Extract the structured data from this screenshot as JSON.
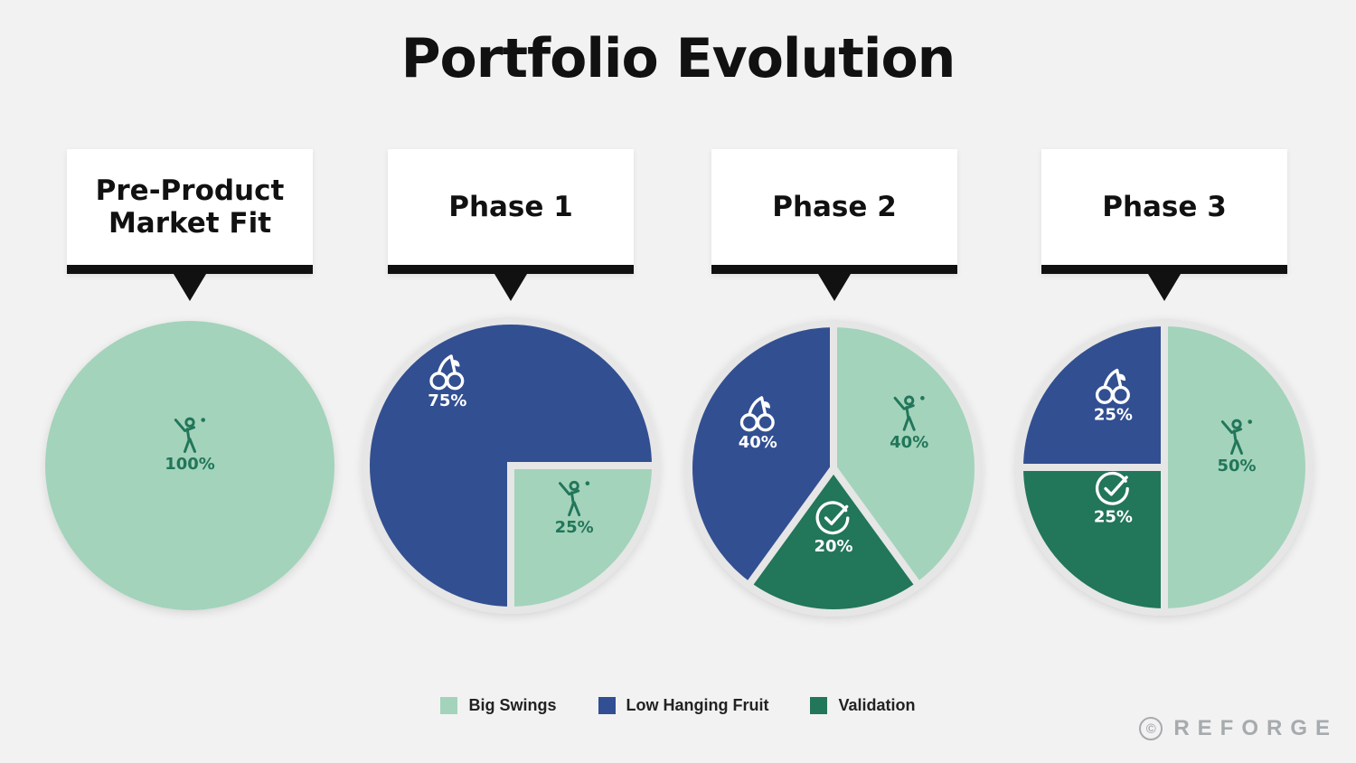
{
  "chart_data": {
    "type": "pie",
    "title": "Portfolio Evolution",
    "colors": {
      "Big Swings": "#a3d3bb",
      "Low Hanging Fruit": "#314f92",
      "Validation": "#22765a"
    },
    "legend": {
      "placement": "bottom",
      "entries": [
        "Big Swings",
        "Low Hanging Fruit",
        "Validation"
      ]
    },
    "charts": [
      {
        "label": "Pre-Product\nMarket Fit",
        "slices": [
          {
            "name": "Big Swings",
            "value": 100,
            "text": "100%",
            "icon": "golfer-icon"
          }
        ]
      },
      {
        "label": "Phase 1",
        "slices": [
          {
            "name": "Big Swings",
            "value": 25,
            "text": "25%",
            "icon": "golfer-icon"
          },
          {
            "name": "Low Hanging Fruit",
            "value": 75,
            "text": "75%",
            "icon": "cherry-icon"
          }
        ]
      },
      {
        "label": "Phase 2",
        "slices": [
          {
            "name": "Big Swings",
            "value": 40,
            "text": "40%",
            "icon": "golfer-icon"
          },
          {
            "name": "Validation",
            "value": 20,
            "text": "20%",
            "icon": "check-circle-icon"
          },
          {
            "name": "Low Hanging Fruit",
            "value": 40,
            "text": "40%",
            "icon": "cherry-icon"
          }
        ]
      },
      {
        "label": "Phase 3",
        "slices": [
          {
            "name": "Big Swings",
            "value": 50,
            "text": "50%",
            "icon": "golfer-icon"
          },
          {
            "name": "Validation",
            "value": 25,
            "text": "25%",
            "icon": "check-circle-icon"
          },
          {
            "name": "Low Hanging Fruit",
            "value": 25,
            "text": "25%",
            "icon": "cherry-icon"
          }
        ]
      }
    ]
  },
  "brand": {
    "name": "REFORGE",
    "symbol": "©"
  }
}
